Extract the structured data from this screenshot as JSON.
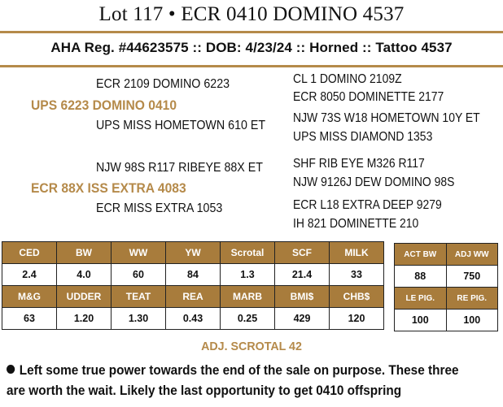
{
  "colors": {
    "gold": "#b58a4a",
    "header_cell": "#a87c3c",
    "text": "#111111"
  },
  "title": "Lot 117 • ECR 0410 DOMINO 4537",
  "registration": "AHA Reg. #44623575 :: DOB: 4/23/24 :: Horned :: Tattoo 4537",
  "pedigree": {
    "sire": "UPS 6223 DOMINO 0410",
    "sire_sire": "ECR 2109 DOMINO 6223",
    "sire_dam": "UPS MISS HOMETOWN 610 ET",
    "sire_sire_sire": "CL 1 DOMINO 2109Z",
    "sire_sire_dam": "ECR 8050 DOMINETTE 2177",
    "sire_dam_sire": "NJW 73S W18 HOMETOWN 10Y ET",
    "sire_dam_dam": "UPS MISS DIAMOND 1353",
    "dam": "ECR 88X ISS EXTRA 4083",
    "dam_sire": "NJW 98S R117 RIBEYE 88X ET",
    "dam_dam": "ECR MISS EXTRA 1053",
    "dam_sire_sire": "SHF RIB EYE M326 R117",
    "dam_sire_dam": "NJW 9126J DEW DOMINO 98S",
    "dam_dam_sire": "ECR L18 EXTRA DEEP 9279",
    "dam_dam_dam": "IH 821 DOMINETTE 210"
  },
  "epd_table": {
    "row1_headers": [
      "CED",
      "BW",
      "WW",
      "YW",
      "Scrotal",
      "SCF",
      "MILK"
    ],
    "row1_values": [
      "2.4",
      "4.0",
      "60",
      "84",
      "1.3",
      "21.4",
      "33"
    ],
    "row2_headers": [
      "M&G",
      "UDDER",
      "TEAT",
      "REA",
      "MARB",
      "BMI$",
      "CHB$"
    ],
    "row2_values": [
      "63",
      "1.20",
      "1.30",
      "0.43",
      "0.25",
      "429",
      "120"
    ]
  },
  "actual_table": {
    "row1_headers": [
      "ACT BW",
      "ADJ WW"
    ],
    "row1_values": [
      "88",
      "750"
    ],
    "row2_headers": [
      "LE PIG.",
      "RE PIG."
    ],
    "row2_values": [
      "100",
      "100"
    ]
  },
  "adj_scrotal": "ADJ. SCROTAL 42",
  "note_line1": "Left some true power towards the end of the sale on purpose. These three",
  "note_line2": "are worth the wait. Likely the last opportunity to get 0410 offspring"
}
